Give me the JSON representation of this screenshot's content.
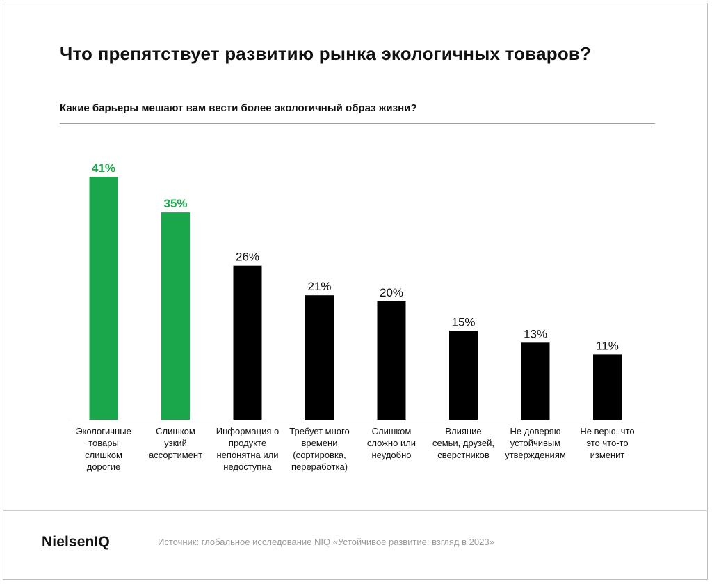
{
  "header": {
    "title": "Что препятствует развитию рынка экологичных товаров?",
    "subtitle": "Какие барьеры мешают вам вести более экологичный образ жизни?"
  },
  "footer": {
    "logo_text": "NielsenIQ",
    "source": "Источник: глобальное исследование NIQ «Устойчивое развитие: взгляд в 2023»"
  },
  "colors": {
    "highlight": "#1aa64a",
    "default": "#000000",
    "label_highlight": "#1aa64a",
    "label_default": "#111111"
  },
  "chart_data": {
    "type": "bar",
    "title": "Что препятствует развитию рынка экологичных товаров?",
    "subtitle": "Какие барьеры мешают вам вести более экологичный образ жизни?",
    "unit": "%",
    "ylim": [
      0,
      41
    ],
    "grid": false,
    "categories": [
      [
        "Экологичные",
        "товары",
        "слишком",
        "дорогие"
      ],
      [
        "Слишком",
        "узкий",
        "ассортимент"
      ],
      [
        "Информация о",
        "продукте",
        "непонятна или",
        "недоступна"
      ],
      [
        "Требует много",
        "времени",
        "(сортировка,",
        "переработка)"
      ],
      [
        "Слишком",
        "сложно или",
        "неудобно"
      ],
      [
        "Влияние",
        "семьи, друзей,",
        "сверстников"
      ],
      [
        "Не доверяю",
        "устойчивым",
        "утверждениям"
      ],
      [
        "Не верю, что",
        "это что-то",
        "изменит"
      ]
    ],
    "values": [
      41,
      35,
      26,
      21,
      20,
      15,
      13,
      11
    ],
    "value_labels": [
      "41%",
      "35%",
      "26%",
      "21%",
      "20%",
      "15%",
      "13%",
      "11%"
    ],
    "highlighted": [
      true,
      true,
      false,
      false,
      false,
      false,
      false,
      false
    ]
  }
}
